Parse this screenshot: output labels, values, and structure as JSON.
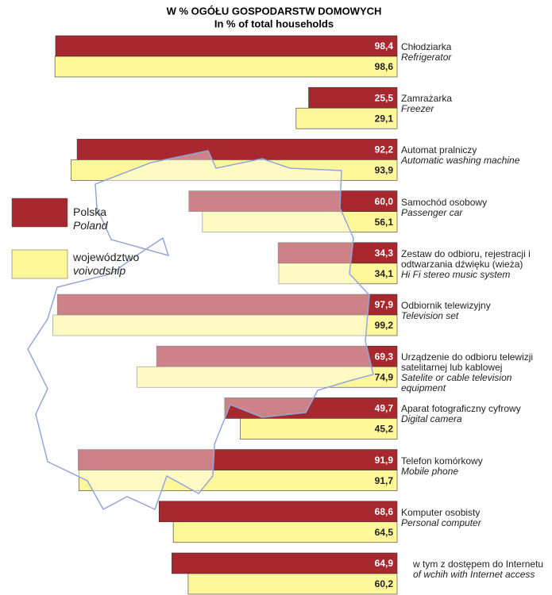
{
  "chart_data": {
    "type": "hbar",
    "title": "W % OGÓŁU GOSPODARSTW DOMOWYCH",
    "subtitle": "In % of total households",
    "categories": [
      "Chłodziarka",
      "Zamrażarka",
      "Automat pralniczy",
      "Samochód osobowy",
      "Zestaw do odbioru, rejestracji i odtwarzania dźwięku (wieża)",
      "Odbiornik telewizyjny",
      "Urządzenie do odbioru telewizji satelitarnej lub kablowej",
      "Aparat fotograficzny cyfrowy",
      "Telefon komórkowy",
      "Komputer osobisty",
      "w tym z dostępem do Internetu"
    ],
    "categories_en": [
      "Refrigerator",
      "Freezer",
      "Automatic washing machine",
      "Passenger car",
      "Hi Fi stereo music system",
      "Television set",
      "Satelite or cable television equipment",
      "Digital camera",
      "Mobile phone",
      "Personal computer",
      "of wchih with Internet access"
    ],
    "series": [
      {
        "name": "Polska",
        "name_en": "Poland",
        "color": "#a7282f",
        "values": [
          98.4,
          25.5,
          92.2,
          60.0,
          34.3,
          97.9,
          69.3,
          49.7,
          91.9,
          68.6,
          64.9
        ],
        "value_labels": [
          "98,4",
          "25,5",
          "92,2",
          "60,0",
          "34,3",
          "97,9",
          "69,3",
          "49,7",
          "91,9",
          "68,6",
          "64,9"
        ]
      },
      {
        "name": "województwo",
        "name_en": "voivodship",
        "color": "#fff799",
        "values": [
          98.6,
          29.1,
          93.9,
          56.1,
          34.1,
          99.2,
          74.9,
          45.2,
          91.7,
          64.5,
          60.2
        ],
        "value_labels": [
          "98,6",
          "29,1",
          "93,9",
          "56,1",
          "34,1",
          "99,2",
          "74,9",
          "45,2",
          "91,7",
          "64,5",
          "60,2"
        ]
      }
    ],
    "xlim": [
      0,
      100
    ]
  }
}
